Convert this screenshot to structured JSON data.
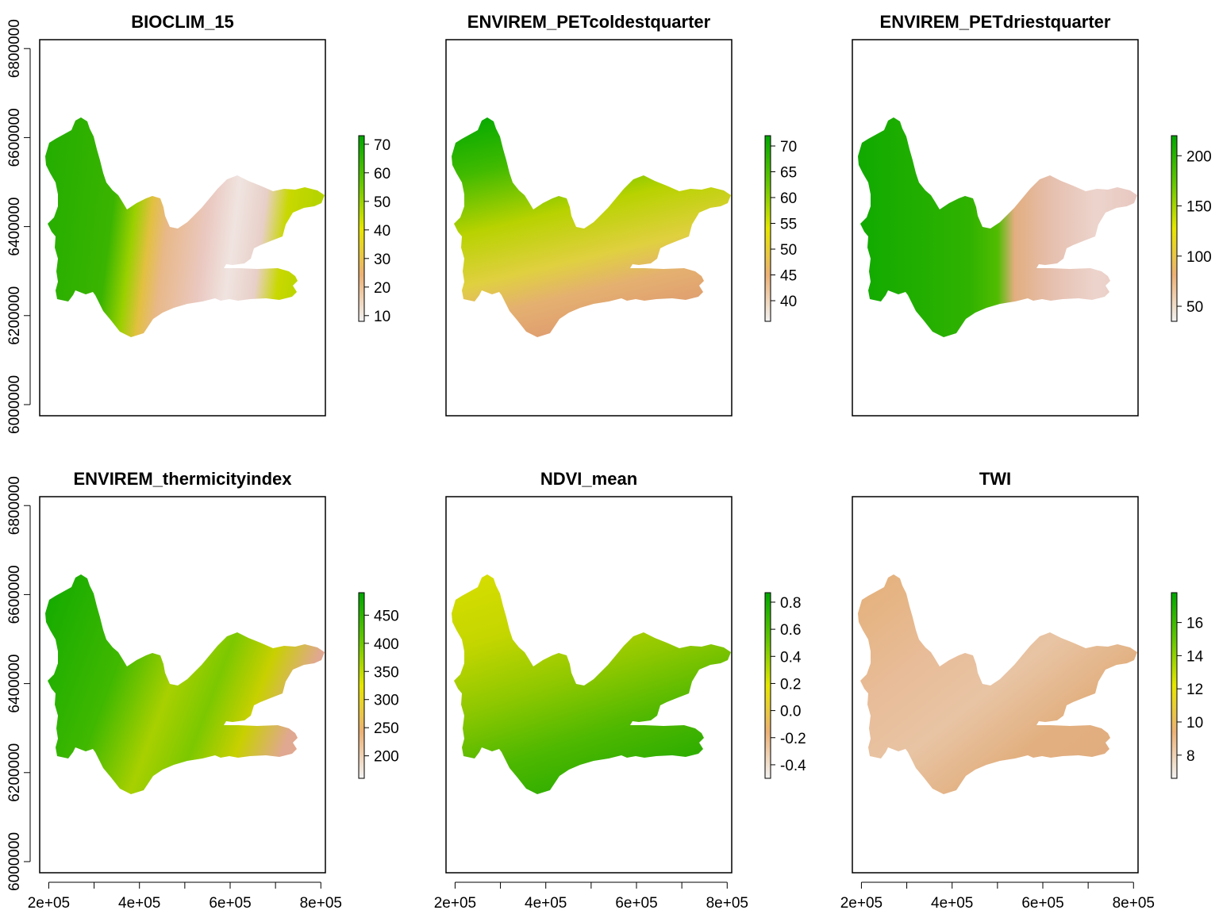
{
  "figure": {
    "panels": [
      {
        "title": "BIOCLIM_15",
        "palette": "terrain",
        "legend_ticks": [
          "10",
          "20",
          "30",
          "40",
          "50",
          "60",
          "70"
        ],
        "legend_range": [
          8,
          73
        ],
        "show_y_axis": true,
        "show_x_axis": false
      },
      {
        "title": "ENVIREM_PETcoldestquarter",
        "palette": "terrain",
        "legend_ticks": [
          "40",
          "45",
          "50",
          "55",
          "60",
          "65",
          "70"
        ],
        "legend_range": [
          36,
          72
        ],
        "show_y_axis": false,
        "show_x_axis": false
      },
      {
        "title": "ENVIREM_PETdriestquarter",
        "palette": "terrain",
        "legend_ticks": [
          "50",
          "100",
          "150",
          "200"
        ],
        "legend_range": [
          35,
          220
        ],
        "show_y_axis": false,
        "show_x_axis": false
      },
      {
        "title": "ENVIREM_thermicityindex",
        "palette": "terrain",
        "legend_ticks": [
          "200",
          "250",
          "300",
          "350",
          "400",
          "450"
        ],
        "legend_range": [
          160,
          490
        ],
        "show_y_axis": true,
        "show_x_axis": true
      },
      {
        "title": "NDVI_mean",
        "palette": "terrain",
        "legend_ticks": [
          "-0.4",
          "-0.2",
          "0.0",
          "0.2",
          "0.4",
          "0.6",
          "0.8"
        ],
        "legend_range": [
          -0.5,
          0.87
        ],
        "show_y_axis": false,
        "show_x_axis": true
      },
      {
        "title": "TWI",
        "palette": "terrain",
        "legend_ticks": [
          "8",
          "10",
          "12",
          "14",
          "16"
        ],
        "legend_range": [
          6.6,
          17.8
        ],
        "show_y_axis": false,
        "show_x_axis": true
      }
    ],
    "x_axis": {
      "labels": [
        "2e+05",
        "4e+05",
        "6e+05",
        "8e+05"
      ],
      "label_values": [
        200000,
        400000,
        600000,
        800000
      ],
      "minor_values": [
        300000,
        500000,
        700000
      ],
      "range": [
        180000,
        810000
      ]
    },
    "y_axis": {
      "labels": [
        "6000000",
        "6200000",
        "6400000",
        "6600000",
        "6800000"
      ],
      "label_values": [
        6000000,
        6200000,
        6400000,
        6600000,
        6800000
      ],
      "range": [
        5975000,
        6820000
      ]
    },
    "colors": {
      "palette_stops": [
        "#f2f2f2",
        "#ecb176",
        "#e6e600",
        "#63c600",
        "#00a600"
      ],
      "frame": "#000000"
    }
  }
}
